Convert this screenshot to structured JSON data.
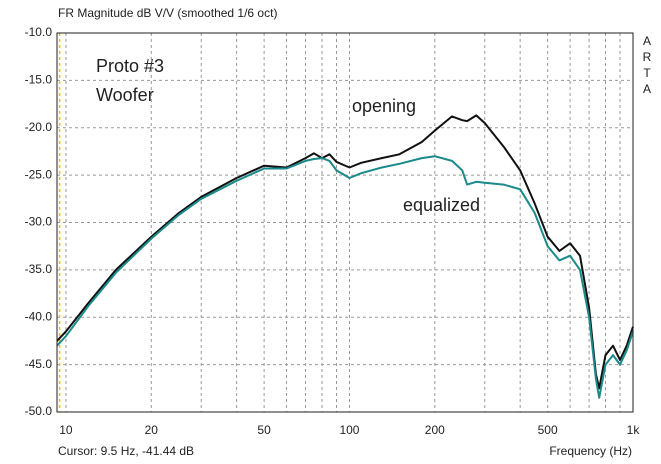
{
  "chart_data": {
    "type": "line",
    "title": "FR Magnitude dB V/V (smoothed 1/6 oct)",
    "xlabel": "Frequency (Hz)",
    "watermark": "ARTA",
    "cursor": {
      "label": "Cursor: 9.5 Hz, -41.44 dB",
      "x": 9.5,
      "color": "#e8c800"
    },
    "annotations": [
      "Proto #3",
      "Woofer",
      "opening",
      "equalized"
    ],
    "xscale": "log",
    "grid": true,
    "xlim": [
      9.3,
      1000
    ],
    "ylim": [
      -50,
      -10
    ],
    "xticks": [
      10,
      20,
      50,
      100,
      200,
      500,
      {
        "value": 1000,
        "label": "1k"
      }
    ],
    "xminor": [
      30,
      40,
      60,
      70,
      80,
      90,
      300,
      400,
      600,
      700,
      800,
      900
    ],
    "yticks": [
      {
        "value": -10,
        "label": "-10.0"
      },
      {
        "value": -15,
        "label": "-15.0"
      },
      {
        "value": -20,
        "label": "-20.0"
      },
      {
        "value": -25,
        "label": "-25.0"
      },
      {
        "value": -30,
        "label": "-30.0"
      },
      {
        "value": -35,
        "label": "-35.0"
      },
      {
        "value": -40,
        "label": "-40.0"
      },
      {
        "value": -45,
        "label": "-45.0"
      },
      {
        "value": -50,
        "label": "-50.0"
      }
    ],
    "x": [
      9.3,
      10,
      12,
      15,
      20,
      25,
      30,
      40,
      50,
      60,
      70,
      75,
      80,
      85,
      90,
      100,
      110,
      130,
      150,
      180,
      200,
      230,
      250,
      260,
      280,
      300,
      350,
      400,
      450,
      500,
      550,
      600,
      650,
      700,
      740,
      760,
      800,
      850,
      900,
      950,
      1000
    ],
    "series": [
      {
        "name": "opening",
        "color": "#111111",
        "values": [
          -42.5,
          -41.5,
          -38.5,
          -35,
          -31.5,
          -29,
          -27.3,
          -25.3,
          -24,
          -24.2,
          -23.2,
          -22.7,
          -23.2,
          -22.8,
          -23.6,
          -24.2,
          -23.7,
          -23.2,
          -22.8,
          -21.5,
          -20.3,
          -18.8,
          -19.2,
          -19.3,
          -18.7,
          -19.5,
          -22,
          -24.5,
          -28,
          -31.5,
          -33,
          -32.2,
          -33.5,
          -39,
          -46,
          -47.5,
          -44,
          -43,
          -44.5,
          -43,
          -41
        ]
      },
      {
        "name": "equalized",
        "color": "#1a8a8a",
        "values": [
          -43,
          -42,
          -38.8,
          -35.3,
          -31.7,
          -29.2,
          -27.5,
          -25.6,
          -24.3,
          -24.3,
          -23.5,
          -23.3,
          -23.2,
          -23.5,
          -24.5,
          -25.3,
          -24.8,
          -24.2,
          -23.8,
          -23.2,
          -23,
          -23.5,
          -24.5,
          -26,
          -25.7,
          -25.8,
          -26,
          -26.5,
          -29,
          -32.5,
          -34,
          -33.5,
          -35,
          -40,
          -46.5,
          -48.5,
          -45,
          -44,
          -45,
          -43.5,
          -41.5
        ]
      }
    ]
  }
}
